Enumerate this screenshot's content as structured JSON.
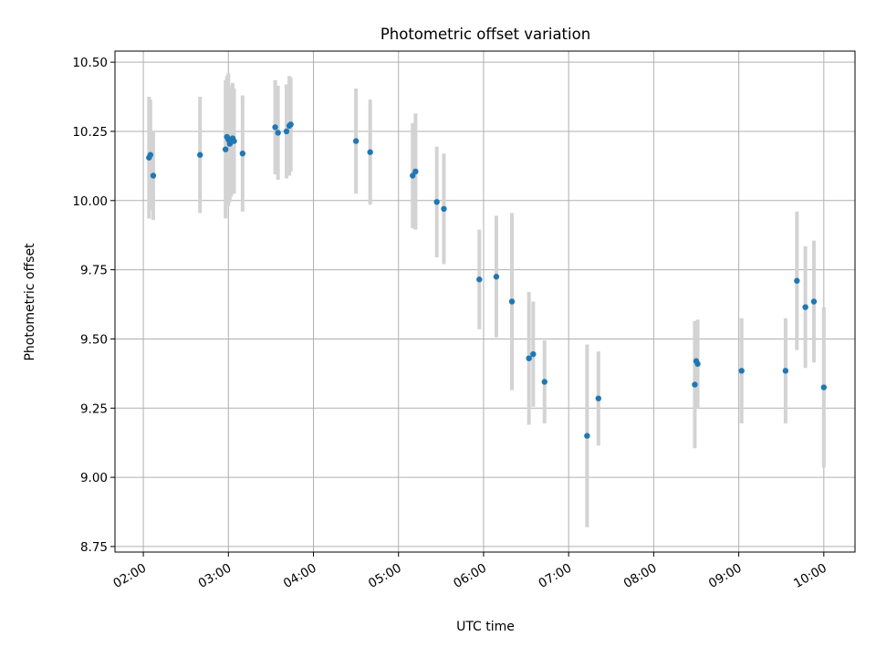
{
  "chart_data": {
    "type": "scatter",
    "title": "Photometric offset variation",
    "xlabel": "UTC time",
    "ylabel": "Photometric offset",
    "x_unit": "UTC time (HH:MM)",
    "xlim": [
      "01:40",
      "10:22"
    ],
    "ylim": [
      8.73,
      10.54
    ],
    "x_ticks": [
      "02:00",
      "03:00",
      "04:00",
      "05:00",
      "06:00",
      "07:00",
      "08:00",
      "09:00",
      "10:00"
    ],
    "y_ticks": [
      "8.75",
      "9.00",
      "9.25",
      "9.50",
      "9.75",
      "10.00",
      "10.25",
      "10.50"
    ],
    "grid": true,
    "colors": {
      "marker": "#1f77b4",
      "errorbar": "#d3d3d3",
      "grid": "#b0b0b0"
    },
    "series": [
      {
        "points": [
          {
            "x": "02:04",
            "y": 10.155,
            "err": 0.22
          },
          {
            "x": "02:05",
            "y": 10.165,
            "err": 0.2
          },
          {
            "x": "02:07",
            "y": 10.09,
            "err": 0.16
          },
          {
            "x": "02:40",
            "y": 10.165,
            "err": 0.21
          },
          {
            "x": "02:58",
            "y": 10.185,
            "err": 0.25
          },
          {
            "x": "02:59",
            "y": 10.23,
            "err": 0.22
          },
          {
            "x": "03:00",
            "y": 10.22,
            "err": 0.24
          },
          {
            "x": "03:01",
            "y": 10.205,
            "err": 0.21
          },
          {
            "x": "03:02",
            "y": 10.215,
            "err": 0.2
          },
          {
            "x": "03:03",
            "y": 10.225,
            "err": 0.2
          },
          {
            "x": "03:04",
            "y": 10.215,
            "err": 0.19
          },
          {
            "x": "03:10",
            "y": 10.17,
            "err": 0.21
          },
          {
            "x": "03:33",
            "y": 10.265,
            "err": 0.17
          },
          {
            "x": "03:35",
            "y": 10.245,
            "err": 0.17
          },
          {
            "x": "03:41",
            "y": 10.25,
            "err": 0.17
          },
          {
            "x": "03:43",
            "y": 10.27,
            "err": 0.18
          },
          {
            "x": "03:44",
            "y": 10.275,
            "err": 0.17
          },
          {
            "x": "04:30",
            "y": 10.215,
            "err": 0.19
          },
          {
            "x": "04:40",
            "y": 10.175,
            "err": 0.19
          },
          {
            "x": "05:10",
            "y": 10.09,
            "err": 0.19
          },
          {
            "x": "05:12",
            "y": 10.105,
            "err": 0.21
          },
          {
            "x": "05:27",
            "y": 9.995,
            "err": 0.2
          },
          {
            "x": "05:32",
            "y": 9.97,
            "err": 0.2
          },
          {
            "x": "05:57",
            "y": 9.715,
            "err": 0.18
          },
          {
            "x": "06:09",
            "y": 9.725,
            "err": 0.22
          },
          {
            "x": "06:20",
            "y": 9.635,
            "err": 0.32
          },
          {
            "x": "06:32",
            "y": 9.43,
            "err": 0.24
          },
          {
            "x": "06:35",
            "y": 9.445,
            "err": 0.19
          },
          {
            "x": "06:43",
            "y": 9.345,
            "err": 0.15
          },
          {
            "x": "07:13",
            "y": 9.15,
            "err": 0.33
          },
          {
            "x": "07:21",
            "y": 9.285,
            "err": 0.17
          },
          {
            "x": "08:29",
            "y": 9.335,
            "err": 0.23
          },
          {
            "x": "08:30",
            "y": 9.42,
            "err": 0.14
          },
          {
            "x": "08:31",
            "y": 9.41,
            "err": 0.16
          },
          {
            "x": "09:02",
            "y": 9.385,
            "err": 0.19
          },
          {
            "x": "09:33",
            "y": 9.385,
            "err": 0.19
          },
          {
            "x": "09:41",
            "y": 9.71,
            "err": 0.25
          },
          {
            "x": "09:47",
            "y": 9.615,
            "err": 0.22
          },
          {
            "x": "09:53",
            "y": 9.635,
            "err": 0.22
          },
          {
            "x": "10:00",
            "y": 9.325,
            "err": 0.29
          }
        ]
      }
    ]
  }
}
